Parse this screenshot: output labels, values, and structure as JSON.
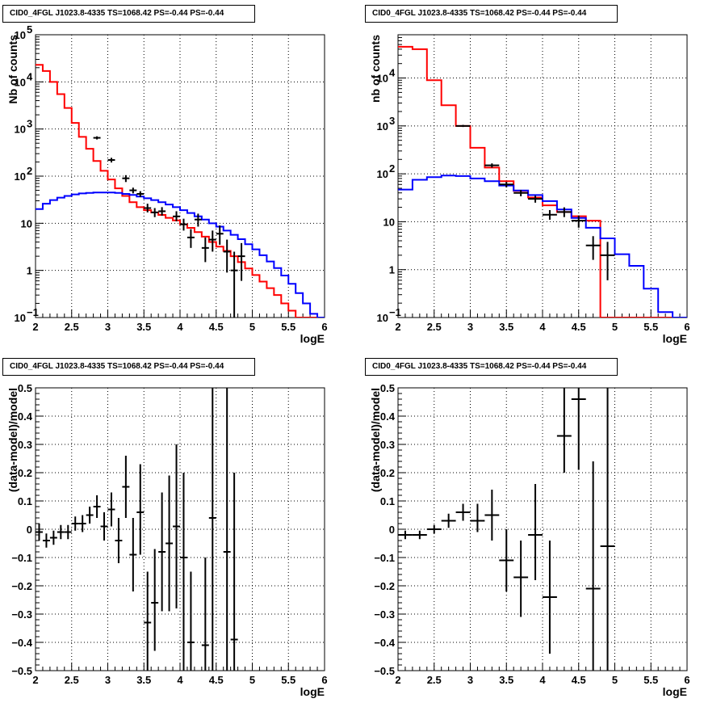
{
  "chart_data": [
    {
      "type": "line",
      "pad": "top-left",
      "title": "CID0_4FGL J1023.8-4335 TS=1068.42 PS=-0.44 PS=-0.44",
      "xlabel": "logE",
      "ylabel": "Nb of counts",
      "xlim": [
        2,
        6
      ],
      "ylim": [
        0.1,
        100000
      ],
      "log_y": true,
      "grid": true,
      "x_ticks": [
        "2",
        "2.5",
        "3",
        "3.5",
        "4",
        "4.5",
        "5",
        "5.5",
        "6"
      ],
      "y_ticks": [
        {
          "base": "10",
          "exp": "−1"
        },
        {
          "base": "1",
          "exp": ""
        },
        {
          "base": "10",
          "exp": ""
        },
        {
          "base": "10",
          "exp": "2"
        },
        {
          "base": "10",
          "exp": "3"
        },
        {
          "base": "10",
          "exp": "4"
        },
        {
          "base": "10",
          "exp": "5"
        }
      ],
      "bin_edges": [
        2,
        2.1,
        2.2,
        2.3,
        2.4,
        2.5,
        2.6,
        2.7,
        2.8,
        2.9,
        3,
        3.1,
        3.2,
        3.3,
        3.4,
        3.5,
        3.6,
        3.7,
        3.8,
        3.9,
        4,
        4.1,
        4.2,
        4.3,
        4.4,
        4.5,
        4.6,
        4.7,
        4.8,
        4.9,
        5,
        5.1,
        5.2,
        5.3,
        5.4,
        5.5,
        5.6,
        5.7,
        5.8,
        5.9,
        6
      ],
      "series": [
        {
          "color": "#ff0000",
          "style": "step",
          "values": [
            23000,
            17000,
            10000,
            5500,
            2800,
            1350,
            680,
            380,
            210,
            130,
            85,
            55,
            38,
            28,
            22,
            19,
            17,
            15,
            13,
            11.5,
            9.5,
            8,
            6.5,
            5.2,
            4,
            3.2,
            2.6,
            2.0,
            1.5,
            1.1,
            0.8,
            0.58,
            0.42,
            0.3,
            0.2,
            0.14,
            0.1,
            0.1,
            0.1,
            0.1
          ]
        },
        {
          "color": "#0000ff",
          "style": "step",
          "values": [
            20,
            26,
            31,
            35,
            38,
            41,
            43,
            44,
            45,
            45,
            45,
            44,
            42,
            40,
            37,
            34,
            31,
            28,
            25,
            22,
            19,
            16.5,
            14,
            12,
            10,
            8.5,
            7,
            5.7,
            4.6,
            3.6,
            2.8,
            2.1,
            1.55,
            1.12,
            0.78,
            0.52,
            0.33,
            0.2,
            0.12,
            0.09
          ]
        },
        {
          "color": "#000000",
          "style": "points",
          "points": [
            {
              "x": 2.85,
              "y": 650,
              "lo": 600,
              "hi": 700
            },
            {
              "x": 3.05,
              "y": 220,
              "lo": 195,
              "hi": 245
            },
            {
              "x": 3.25,
              "y": 90,
              "lo": 75,
              "hi": 105
            },
            {
              "x": 3.35,
              "y": 50,
              "lo": 43,
              "hi": 57
            },
            {
              "x": 3.45,
              "y": 42,
              "lo": 36,
              "hi": 48
            },
            {
              "x": 3.55,
              "y": 21,
              "lo": 17,
              "hi": 26
            },
            {
              "x": 3.65,
              "y": 17,
              "lo": 13.5,
              "hi": 21
            },
            {
              "x": 3.75,
              "y": 18,
              "lo": 14.5,
              "hi": 22
            },
            {
              "x": 3.95,
              "y": 14,
              "lo": 11,
              "hi": 18
            },
            {
              "x": 4.05,
              "y": 9.5,
              "lo": 7,
              "hi": 12.5
            },
            {
              "x": 4.15,
              "y": 5,
              "lo": 3,
              "hi": 7.5
            },
            {
              "x": 4.25,
              "y": 12,
              "lo": 8.5,
              "hi": 16
            },
            {
              "x": 4.35,
              "y": 3,
              "lo": 1.5,
              "hi": 5
            },
            {
              "x": 4.45,
              "y": 4.5,
              "lo": 2.5,
              "hi": 7
            },
            {
              "x": 4.55,
              "y": 6,
              "lo": 3.5,
              "hi": 9
            },
            {
              "x": 4.65,
              "y": 2.5,
              "lo": 0.9,
              "hi": 4.5
            },
            {
              "x": 4.75,
              "y": 1,
              "lo": 0.1,
              "hi": 2.5
            },
            {
              "x": 4.85,
              "y": 2,
              "lo": 0.6,
              "hi": 3.8
            }
          ]
        }
      ]
    },
    {
      "type": "line",
      "pad": "top-right",
      "title": "CID0_4FGL J1023.8-4335 TS=1068.42 PS=-0.44 PS=-0.44",
      "xlabel": "logE",
      "ylabel": "nb of counts",
      "xlim": [
        2,
        6
      ],
      "ylim": [
        0.1,
        80000
      ],
      "log_y": true,
      "grid": true,
      "x_ticks": [
        "2",
        "2.5",
        "3",
        "3.5",
        "4",
        "4.5",
        "5",
        "5.5",
        "6"
      ],
      "y_ticks": [
        {
          "base": "10",
          "exp": "−1"
        },
        {
          "base": "1",
          "exp": ""
        },
        {
          "base": "10",
          "exp": ""
        },
        {
          "base": "10",
          "exp": "2"
        },
        {
          "base": "10",
          "exp": "3"
        },
        {
          "base": "10",
          "exp": "4"
        }
      ],
      "bin_edges": [
        2,
        2.2,
        2.4,
        2.6,
        2.8,
        3,
        3.2,
        3.4,
        3.6,
        3.8,
        4,
        4.2,
        4.4,
        4.6,
        4.8,
        5,
        5.2,
        5.4,
        5.6,
        5.8,
        6
      ],
      "series": [
        {
          "color": "#ff0000",
          "style": "step",
          "values": [
            45000,
            40000,
            9000,
            2700,
            1000,
            350,
            135,
            70,
            44,
            32,
            22,
            16,
            13,
            10.5,
            0.1,
            0.1,
            0.1,
            0.1,
            0.1,
            0.1
          ]
        },
        {
          "color": "#0000ff",
          "style": "step",
          "values": [
            47,
            75,
            85,
            92,
            90,
            80,
            70,
            57,
            45,
            36,
            27,
            18,
            12,
            7.5,
            4.5,
            2.1,
            1.2,
            0.4,
            0.13,
            0.1
          ]
        },
        {
          "color": "#000000",
          "style": "points",
          "points": [
            {
              "x": 2.9,
              "y": 1000,
              "lo": 950,
              "hi": 1050
            },
            {
              "x": 3.3,
              "y": 150,
              "lo": 135,
              "hi": 165
            },
            {
              "x": 3.5,
              "y": 60,
              "lo": 52,
              "hi": 68
            },
            {
              "x": 3.7,
              "y": 40,
              "lo": 34,
              "hi": 46
            },
            {
              "x": 3.9,
              "y": 30,
              "lo": 25,
              "hi": 35
            },
            {
              "x": 4.1,
              "y": 14,
              "lo": 11,
              "hi": 17.5
            },
            {
              "x": 4.3,
              "y": 16,
              "lo": 12.5,
              "hi": 20
            },
            {
              "x": 4.5,
              "y": 10.5,
              "lo": 7.5,
              "hi": 13.5
            },
            {
              "x": 4.7,
              "y": 3.2,
              "lo": 1.6,
              "hi": 5
            },
            {
              "x": 4.9,
              "y": 2,
              "lo": 0.6,
              "hi": 3.8
            }
          ]
        }
      ]
    },
    {
      "type": "scatter",
      "pad": "bottom-left",
      "title": "CID0_4FGL J1023.8-4335 TS=1068.42 PS=-0.44 PS=-0.44",
      "xlabel": "logE",
      "ylabel": "(data-model)/model",
      "xlim": [
        2,
        6
      ],
      "ylim": [
        -0.5,
        0.5
      ],
      "grid": true,
      "x_ticks": [
        "2",
        "2.5",
        "3",
        "3.5",
        "4",
        "4.5",
        "5",
        "5.5",
        "6"
      ],
      "y_ticks": [
        "−0.5",
        "−0.4",
        "−0.3",
        "−0.2",
        "−0.1",
        "0",
        "0.1",
        "0.2",
        "0.3",
        "0.4",
        "0.5"
      ],
      "half_width": 0.05,
      "points": [
        {
          "x": 2.05,
          "y": -0.01,
          "lo": -0.04,
          "hi": 0.02
        },
        {
          "x": 2.15,
          "y": -0.04,
          "lo": -0.065,
          "hi": -0.015
        },
        {
          "x": 2.25,
          "y": -0.03,
          "lo": -0.055,
          "hi": -0.005
        },
        {
          "x": 2.35,
          "y": -0.01,
          "lo": -0.035,
          "hi": 0.015
        },
        {
          "x": 2.45,
          "y": -0.01,
          "lo": -0.035,
          "hi": 0.015
        },
        {
          "x": 2.55,
          "y": 0.02,
          "lo": -0.005,
          "hi": 0.045
        },
        {
          "x": 2.65,
          "y": 0.02,
          "lo": -0.01,
          "hi": 0.05
        },
        {
          "x": 2.75,
          "y": 0.05,
          "lo": 0.02,
          "hi": 0.08
        },
        {
          "x": 2.85,
          "y": 0.08,
          "lo": 0.04,
          "hi": 0.12
        },
        {
          "x": 2.95,
          "y": 0.01,
          "lo": -0.04,
          "hi": 0.06
        },
        {
          "x": 3.05,
          "y": 0.07,
          "lo": 0.01,
          "hi": 0.13
        },
        {
          "x": 3.15,
          "y": -0.04,
          "lo": -0.12,
          "hi": 0.04
        },
        {
          "x": 3.25,
          "y": 0.15,
          "lo": 0.04,
          "hi": 0.26
        },
        {
          "x": 3.35,
          "y": -0.09,
          "lo": -0.22,
          "hi": 0.04
        },
        {
          "x": 3.45,
          "y": 0.06,
          "lo": -0.09,
          "hi": 0.23
        },
        {
          "x": 3.55,
          "y": -0.33,
          "lo": -0.5,
          "hi": -0.15
        },
        {
          "x": 3.65,
          "y": -0.26,
          "lo": -0.43,
          "hi": -0.07
        },
        {
          "x": 3.75,
          "y": -0.08,
          "lo": -0.29,
          "hi": 0.13
        },
        {
          "x": 3.85,
          "y": -0.05,
          "lo": -0.29,
          "hi": 0.19
        },
        {
          "x": 3.95,
          "y": 0.01,
          "lo": -0.28,
          "hi": 0.3
        },
        {
          "x": 4.05,
          "y": -0.1,
          "lo": -0.5,
          "hi": 0.2
        },
        {
          "x": 4.15,
          "y": -0.4,
          "lo": -0.5,
          "hi": -0.15
        },
        {
          "x": 4.35,
          "y": -0.41,
          "lo": -0.5,
          "hi": -0.1
        },
        {
          "x": 4.45,
          "y": 0.04,
          "lo": -0.5,
          "hi": 0.5
        },
        {
          "x": 4.65,
          "y": -0.08,
          "lo": -0.5,
          "hi": 0.5
        },
        {
          "x": 4.75,
          "y": -0.39,
          "lo": -0.5,
          "hi": 0.2
        }
      ]
    },
    {
      "type": "scatter",
      "pad": "bottom-right",
      "title": "CID0_4FGL J1023.8-4335 TS=1068.42 PS=-0.44 PS=-0.44",
      "xlabel": "logE",
      "ylabel": "(data-model)/model",
      "xlim": [
        2,
        6
      ],
      "ylim": [
        -0.5,
        0.5
      ],
      "grid": true,
      "x_ticks": [
        "2",
        "2.5",
        "3",
        "3.5",
        "4",
        "4.5",
        "5",
        "5.5",
        "6"
      ],
      "y_ticks": [
        "−0.5",
        "−0.4",
        "−0.3",
        "−0.2",
        "−0.1",
        "0",
        "0.1",
        "0.2",
        "0.3",
        "0.4",
        "0.5"
      ],
      "half_width": 0.1,
      "points": [
        {
          "x": 2.1,
          "y": -0.02,
          "lo": -0.035,
          "hi": -0.005
        },
        {
          "x": 2.3,
          "y": -0.02,
          "lo": -0.035,
          "hi": -0.005
        },
        {
          "x": 2.5,
          "y": 0.0,
          "lo": -0.015,
          "hi": 0.015
        },
        {
          "x": 2.7,
          "y": 0.03,
          "lo": 0.005,
          "hi": 0.055
        },
        {
          "x": 2.9,
          "y": 0.06,
          "lo": 0.03,
          "hi": 0.09
        },
        {
          "x": 3.1,
          "y": 0.03,
          "lo": -0.01,
          "hi": 0.09
        },
        {
          "x": 3.3,
          "y": 0.05,
          "lo": -0.04,
          "hi": 0.14
        },
        {
          "x": 3.5,
          "y": -0.11,
          "lo": -0.22,
          "hi": 0.0
        },
        {
          "x": 3.7,
          "y": -0.17,
          "lo": -0.31,
          "hi": -0.04
        },
        {
          "x": 3.9,
          "y": -0.02,
          "lo": -0.18,
          "hi": 0.16
        },
        {
          "x": 4.1,
          "y": -0.24,
          "lo": -0.44,
          "hi": -0.04
        },
        {
          "x": 4.3,
          "y": 0.33,
          "lo": 0.2,
          "hi": 0.5
        },
        {
          "x": 4.5,
          "y": 0.46,
          "lo": 0.21,
          "hi": 0.5
        },
        {
          "x": 4.7,
          "y": -0.21,
          "lo": -0.5,
          "hi": 0.24
        },
        {
          "x": 4.9,
          "y": -0.06,
          "lo": -0.5,
          "hi": 0.5
        }
      ]
    }
  ]
}
